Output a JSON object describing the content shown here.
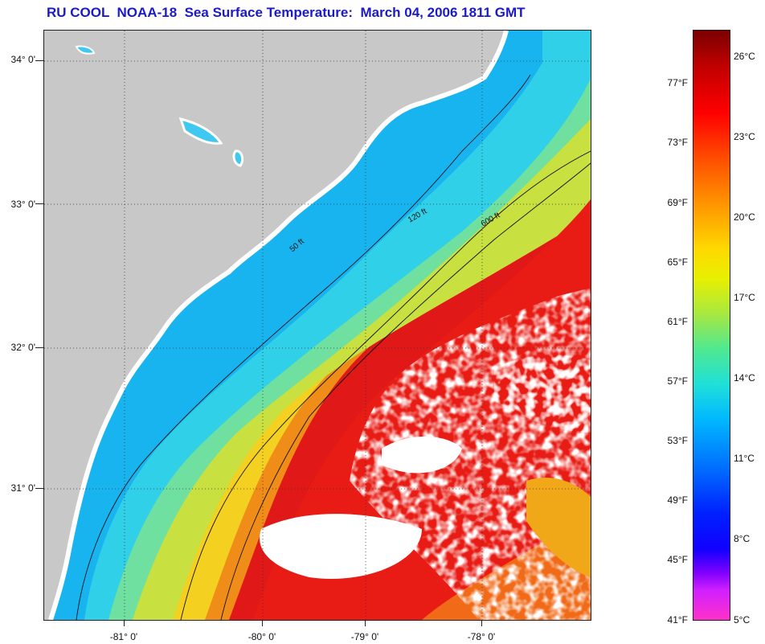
{
  "title": "RU COOL  NOAA-18  Sea Surface Temperature:  March 04, 2006 1811 GMT",
  "map": {
    "lat_labels": [
      "34° 0'",
      "33° 0'",
      "32° 0'",
      "31° 0'"
    ],
    "lon_labels": [
      "-81° 0'",
      "-80° 0'",
      "-79° 0'",
      "-78° 0'"
    ],
    "contour_labels": [
      "50 ft",
      "120 ft",
      "600 ft"
    ],
    "colors": {
      "land": "#c8c8c8",
      "cloud": "#ffffff",
      "nearshore": "#18c8f0",
      "shelf": "#40d8e8",
      "mid": "#a8e060",
      "warm": "#f0d020",
      "hot": "#f07018",
      "gulfstream": "#e01818"
    }
  },
  "colorbar": {
    "fahrenheit": [
      "77°F",
      "73°F",
      "69°F",
      "65°F",
      "61°F",
      "57°F",
      "53°F",
      "49°F",
      "45°F",
      "41°F"
    ],
    "celsius": [
      "26°C",
      "23°C",
      "20°C",
      "17°C",
      "14°C",
      "11°C",
      "8°C",
      "5°C"
    ],
    "range_c": [
      5,
      27
    ]
  }
}
